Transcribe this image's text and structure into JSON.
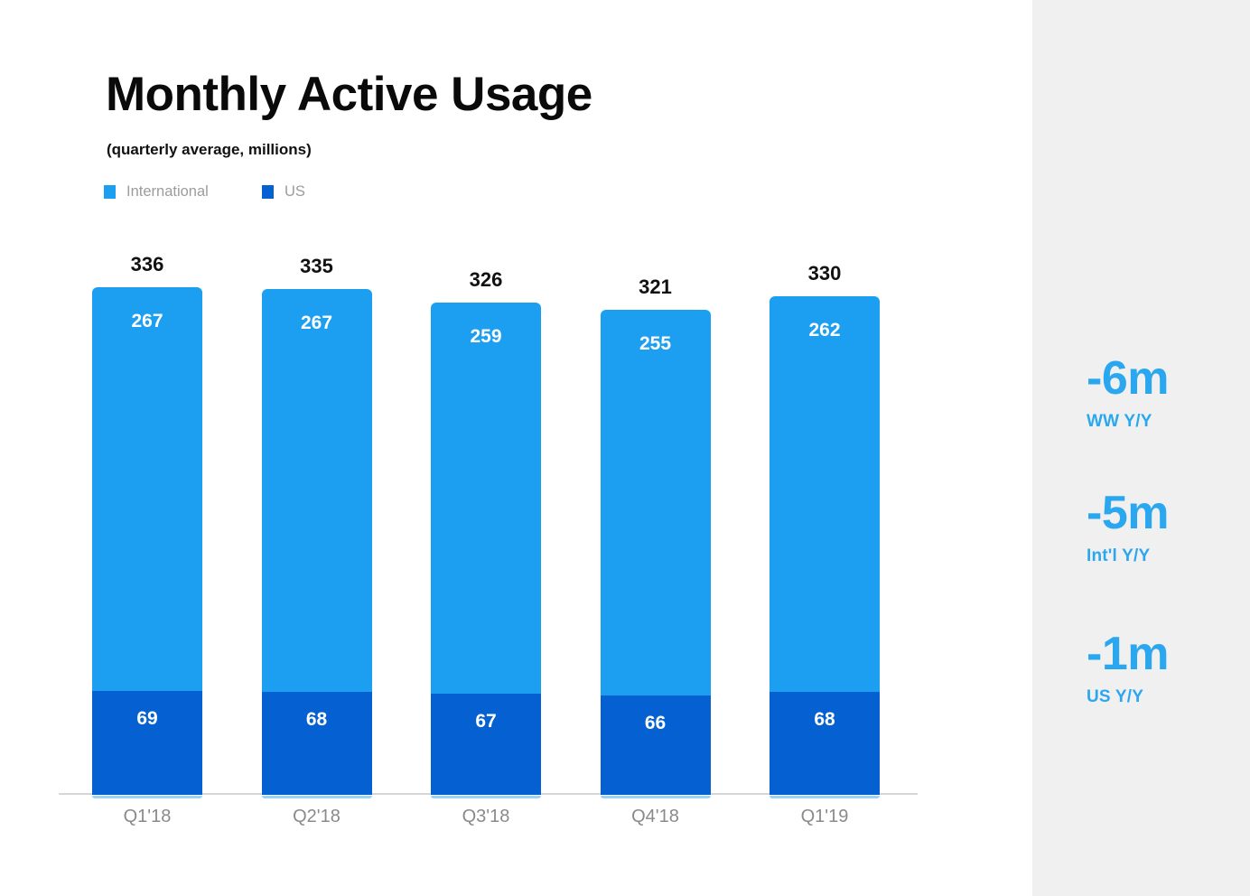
{
  "title": "Monthly Active Usage",
  "subtitle": "(quarterly average, millions)",
  "legend": [
    {
      "label": "International"
    },
    {
      "label": "US"
    }
  ],
  "colors": {
    "international": "#1d9ff1",
    "us": "#0561d2",
    "stats_accent": "#2aa7ef",
    "sidebar_bg": "#f0f0f1",
    "axis": "#d6d6d6"
  },
  "chart_data": {
    "type": "bar",
    "stacked": true,
    "title": "Monthly Active Usage",
    "subtitle": "(quarterly average, millions)",
    "categories": [
      "Q1'18",
      "Q2'18",
      "Q3'18",
      "Q4'18",
      "Q1'19"
    ],
    "series": [
      {
        "name": "US",
        "values": [
          69,
          68,
          67,
          66,
          68
        ],
        "color": "#0561d2"
      },
      {
        "name": "International",
        "values": [
          267,
          267,
          259,
          255,
          262
        ],
        "color": "#1d9ff1"
      }
    ],
    "totals": [
      336,
      335,
      326,
      321,
      330
    ],
    "ylim": [
      0,
      336
    ],
    "grid": false,
    "legend_position": "top-left",
    "value_labels": "inside-top",
    "total_labels": "above-bars"
  },
  "sidebar": {
    "stats": [
      {
        "value": "-6m",
        "label": "WW Y/Y"
      },
      {
        "value": "-5m",
        "label": "Int'l Y/Y"
      },
      {
        "value": "-1m",
        "label": "US Y/Y"
      }
    ]
  }
}
